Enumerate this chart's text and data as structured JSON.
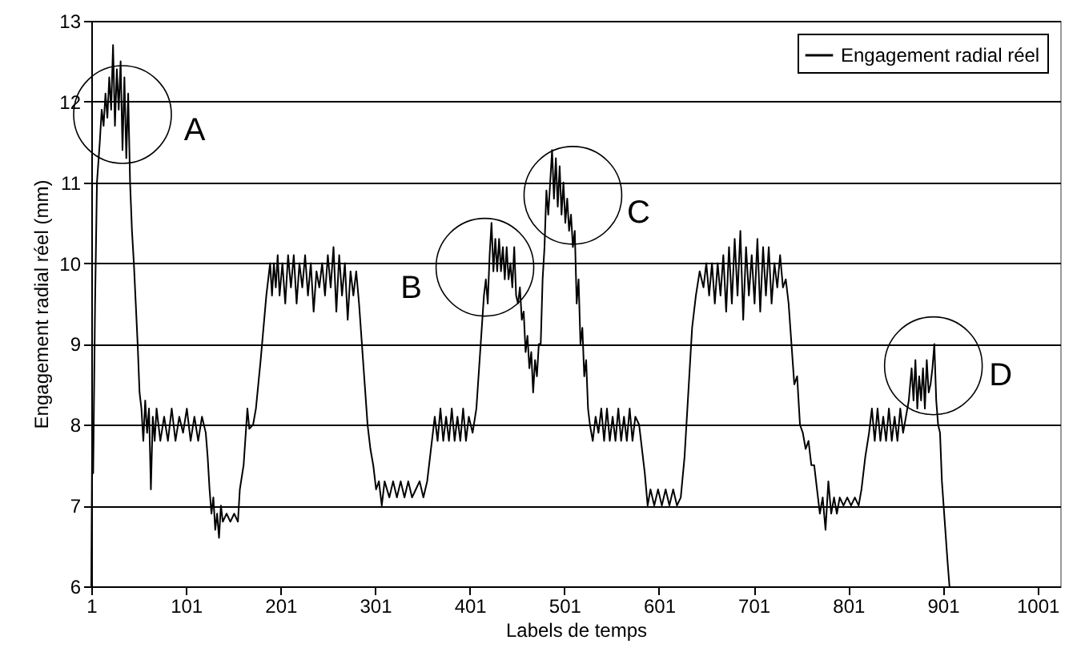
{
  "chart_data": {
    "type": "line",
    "xlabel": "Labels de temps",
    "ylabel": "Engagement radial réel (mm)",
    "xlim": [
      1,
      1025
    ],
    "xticks": [
      1,
      101,
      201,
      301,
      401,
      501,
      601,
      701,
      801,
      901,
      1001
    ],
    "ylim": [
      6,
      13
    ],
    "yticks": [
      6,
      7,
      8,
      9,
      10,
      11,
      12,
      13
    ],
    "grid": "y",
    "legend": "top right",
    "marker": "none",
    "line_style": "solid",
    "annotations": [
      {
        "text": "A",
        "x": 34,
        "y": 11.84
      },
      {
        "text": "B",
        "x": 417,
        "y": 9.95
      },
      {
        "text": "C",
        "x": 510,
        "y": 10.84
      },
      {
        "text": "D",
        "x": 891,
        "y": 8.73
      }
    ],
    "x": [
      1,
      2,
      3,
      5,
      7,
      10,
      12,
      14,
      16,
      18,
      20,
      22,
      24,
      26,
      28,
      30,
      32,
      34,
      36,
      38,
      40,
      42,
      44,
      46,
      48,
      50,
      52,
      54,
      56,
      58,
      60,
      62,
      64,
      66,
      68,
      70,
      74,
      78,
      82,
      86,
      90,
      94,
      98,
      102,
      106,
      110,
      114,
      118,
      122,
      124,
      126,
      128,
      130,
      132,
      134,
      136,
      138,
      140,
      144,
      148,
      152,
      156,
      158,
      162,
      166,
      168,
      172,
      175,
      180,
      186,
      190,
      192,
      194,
      196,
      198,
      200,
      203,
      206,
      209,
      212,
      215,
      218,
      221,
      224,
      227,
      230,
      233,
      236,
      239,
      242,
      245,
      248,
      251,
      254,
      257,
      260,
      263,
      266,
      269,
      272,
      275,
      278,
      281,
      284,
      287,
      290,
      293,
      296,
      299,
      302,
      305,
      308,
      311,
      316,
      320,
      324,
      328,
      332,
      336,
      340,
      344,
      348,
      352,
      356,
      360,
      364,
      367,
      370,
      373,
      376,
      379,
      382,
      385,
      388,
      391,
      394,
      397,
      400,
      404,
      408,
      412,
      416,
      418,
      420,
      422,
      424,
      426,
      428,
      430,
      432,
      434,
      436,
      438,
      440,
      442,
      444,
      446,
      448,
      450,
      452,
      454,
      456,
      458,
      460,
      462,
      464,
      466,
      468,
      470,
      472,
      474,
      476,
      478,
      480,
      482,
      484,
      486,
      488,
      490,
      492,
      494,
      496,
      498,
      500,
      502,
      504,
      506,
      508,
      510,
      512,
      514,
      516,
      518,
      520,
      522,
      524,
      526,
      528,
      531,
      534,
      537,
      540,
      543,
      546,
      549,
      552,
      555,
      558,
      561,
      564,
      567,
      570,
      573,
      576,
      580,
      583,
      586,
      589,
      592,
      596,
      600,
      604,
      608,
      612,
      616,
      620,
      624,
      628,
      632,
      636,
      640,
      644,
      648,
      651,
      654,
      657,
      660,
      663,
      666,
      669,
      672,
      675,
      678,
      681,
      684,
      687,
      690,
      693,
      696,
      699,
      702,
      705,
      708,
      711,
      714,
      717,
      720,
      723,
      726,
      729,
      732,
      735,
      738,
      741,
      744,
      747,
      750,
      753,
      756,
      759,
      762,
      765,
      768,
      771,
      774,
      777,
      780,
      783,
      786,
      789,
      792,
      796,
      800,
      804,
      808,
      812,
      815,
      819,
      823,
      826,
      829,
      832,
      835,
      838,
      841,
      844,
      847,
      850,
      853,
      856,
      859,
      862,
      865,
      868,
      870,
      872,
      874,
      876,
      878,
      880,
      882,
      884,
      886,
      888,
      890,
      892,
      894,
      896,
      898,
      900,
      903,
      906,
      908
    ],
    "series": [
      {
        "name": "Engagement radial réel",
        "color": "#000000",
        "values": [
          6.0,
          8.0,
          7.4,
          9.5,
          11.0,
          11.5,
          11.9,
          11.7,
          12.1,
          11.8,
          12.3,
          11.9,
          12.7,
          11.7,
          12.4,
          11.9,
          12.5,
          11.4,
          12.3,
          11.3,
          12.1,
          11.0,
          10.4,
          10.0,
          9.5,
          9.0,
          8.4,
          8.2,
          7.8,
          8.3,
          7.9,
          8.2,
          7.2,
          8.1,
          7.8,
          8.2,
          7.8,
          8.1,
          7.8,
          8.2,
          7.8,
          8.1,
          7.9,
          8.2,
          7.8,
          8.1,
          7.8,
          8.1,
          7.9,
          7.6,
          7.2,
          6.9,
          7.1,
          6.7,
          6.9,
          6.6,
          7.0,
          6.8,
          6.9,
          6.8,
          6.9,
          6.8,
          7.2,
          7.5,
          8.2,
          7.95,
          8.0,
          8.2,
          8.8,
          9.6,
          10.0,
          9.6,
          10.0,
          9.7,
          10.1,
          9.6,
          10.0,
          9.5,
          10.1,
          9.7,
          10.1,
          9.5,
          10.0,
          9.7,
          10.1,
          9.6,
          10.0,
          9.4,
          9.9,
          9.7,
          10.0,
          9.6,
          10.1,
          9.7,
          10.2,
          9.4,
          10.1,
          9.6,
          10.0,
          9.3,
          9.9,
          9.6,
          9.9,
          9.5,
          9.0,
          8.5,
          8.0,
          7.7,
          7.5,
          7.2,
          7.3,
          7.0,
          7.3,
          7.1,
          7.3,
          7.1,
          7.3,
          7.1,
          7.3,
          7.1,
          7.2,
          7.3,
          7.1,
          7.3,
          7.7,
          8.1,
          7.8,
          8.2,
          7.8,
          8.1,
          7.8,
          8.2,
          7.8,
          8.1,
          7.8,
          8.2,
          7.8,
          8.1,
          7.9,
          8.2,
          8.9,
          9.6,
          9.8,
          9.5,
          10.1,
          10.5,
          9.9,
          10.3,
          9.9,
          10.3,
          9.9,
          10.2,
          9.8,
          10.2,
          9.8,
          10.0,
          9.7,
          10.2,
          9.6,
          9.5,
          9.7,
          9.3,
          9.4,
          8.9,
          9.1,
          8.7,
          8.9,
          8.4,
          8.8,
          8.6,
          9.0,
          9.0,
          9.8,
          10.2,
          10.9,
          10.6,
          11.0,
          11.4,
          10.8,
          11.3,
          10.7,
          11.2,
          10.6,
          11.0,
          10.5,
          10.8,
          10.4,
          10.6,
          10.2,
          10.4,
          9.5,
          9.8,
          9.0,
          9.2,
          8.6,
          8.8,
          8.2,
          8.0,
          7.8,
          8.1,
          7.9,
          8.2,
          7.8,
          8.2,
          7.8,
          8.1,
          7.8,
          8.2,
          7.8,
          8.1,
          7.8,
          8.2,
          7.8,
          8.1,
          8.0,
          7.7,
          7.4,
          7.0,
          7.2,
          7.0,
          7.2,
          7.0,
          7.2,
          7.0,
          7.2,
          7.0,
          7.1,
          7.6,
          8.4,
          9.2,
          9.6,
          9.9,
          9.7,
          10.0,
          9.6,
          10.0,
          9.5,
          10.0,
          9.6,
          10.1,
          9.4,
          10.2,
          9.5,
          10.3,
          9.6,
          10.4,
          9.3,
          10.2,
          9.6,
          10.1,
          9.5,
          10.3,
          9.4,
          10.2,
          9.6,
          10.2,
          9.5,
          10.0,
          9.7,
          10.1,
          9.7,
          9.8,
          9.5,
          9.0,
          8.5,
          8.6,
          8.0,
          7.9,
          7.7,
          7.8,
          7.5,
          7.5,
          7.2,
          6.9,
          7.1,
          6.7,
          7.3,
          6.9,
          7.1,
          6.9,
          7.1,
          7.0,
          7.1,
          7.0,
          7.1,
          7.0,
          7.2,
          7.6,
          7.9,
          8.2,
          7.8,
          8.2,
          7.8,
          8.1,
          7.8,
          8.2,
          7.8,
          8.1,
          7.8,
          8.2,
          7.9,
          8.1,
          8.3,
          8.7,
          8.3,
          8.8,
          8.2,
          8.6,
          8.3,
          8.7,
          8.2,
          8.8,
          8.4,
          8.5,
          8.7,
          9.0,
          8.3,
          8.0,
          7.9,
          7.3,
          6.8,
          6.3,
          6.0
        ]
      }
    ]
  }
}
